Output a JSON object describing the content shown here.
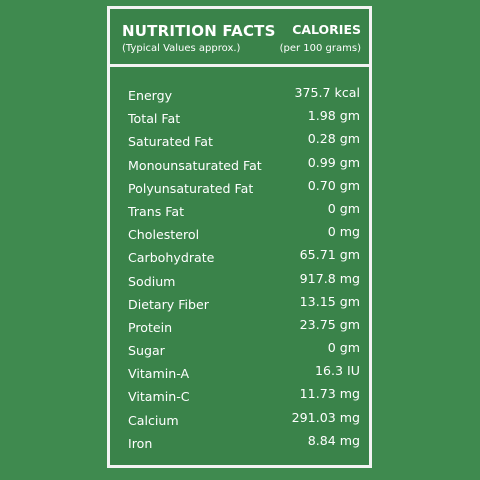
{
  "colors": {
    "background": "#3f8a4f",
    "panel": "#3a834a",
    "border": "#f3f3f3",
    "text": "#ffffff"
  },
  "header": {
    "title": "NUTRITION FACTS",
    "subtitle": "(Typical Values approx.)",
    "calories_title": "CALORIES",
    "calories_subtitle": "(per 100 grams)"
  },
  "nutrients": [
    {
      "name": "Energy",
      "value": "375.7 kcal"
    },
    {
      "name": "Total Fat",
      "value": "1.98 gm"
    },
    {
      "name": "Saturated Fat",
      "value": "0.28 gm"
    },
    {
      "name": "Monounsaturated Fat",
      "value": "0.99 gm"
    },
    {
      "name": "Polyunsaturated Fat",
      "value": "0.70 gm"
    },
    {
      "name": "Trans Fat",
      "value": "0 gm"
    },
    {
      "name": "Cholesterol",
      "value": "0 mg"
    },
    {
      "name": "Carbohydrate",
      "value": "65.71 gm"
    },
    {
      "name": "Sodium",
      "value": "917.8 mg"
    },
    {
      "name": "Dietary Fiber",
      "value": "13.15 gm"
    },
    {
      "name": "Protein",
      "value": "23.75 gm"
    },
    {
      "name": "Sugar",
      "value": "0 gm"
    },
    {
      "name": "Vitamin-A",
      "value": "16.3 IU"
    },
    {
      "name": "Vitamin-C",
      "value": "11.73 mg"
    },
    {
      "name": "Calcium",
      "value": "291.03 mg"
    },
    {
      "name": "Iron",
      "value": "8.84 mg"
    }
  ]
}
